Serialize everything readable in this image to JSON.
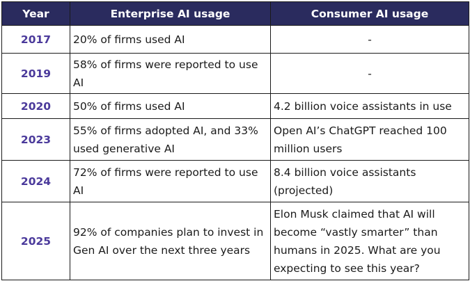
{
  "headers": {
    "year": "Year",
    "enterprise": "Enterprise AI usage",
    "consumer": "Consumer AI usage"
  },
  "rows": [
    {
      "year": "2017",
      "enterprise": "20% of firms used AI",
      "consumer": "-"
    },
    {
      "year": "2019",
      "enterprise": "58% of firms were reported to use AI",
      "consumer": "-"
    },
    {
      "year": "2020",
      "enterprise": "50% of firms used  AI",
      "consumer": "4.2 billion voice assistants in use"
    },
    {
      "year": "2023",
      "enterprise": "55% of firms adopted AI, and 33% used generative AI",
      "consumer": "Open AI’s ChatGPT reached 100 million users"
    },
    {
      "year": "2024",
      "enterprise": "72% of firms were reported to use AI",
      "consumer": "8.4 billion voice assistants (projected)"
    },
    {
      "year": "2025",
      "enterprise": "92% of companies plan to invest in Gen AI over the next three years",
      "consumer": "Elon Musk claimed that AI will become “vastly smarter” than humans in 2025. What are you expecting to see this year?"
    }
  ]
}
